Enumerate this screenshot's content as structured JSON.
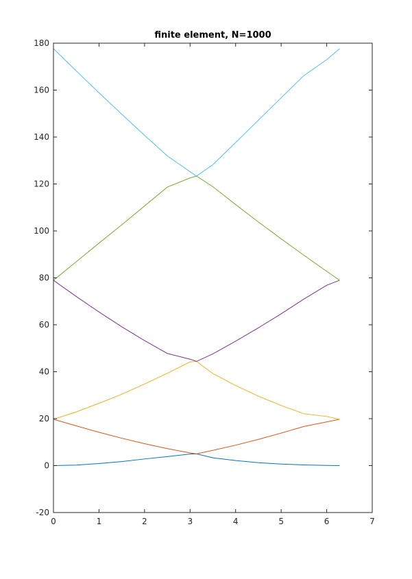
{
  "chart_data": {
    "type": "line",
    "title": "finite element, N=1000",
    "xlabel": "",
    "ylabel": "",
    "xlim": [
      0,
      7
    ],
    "ylim": [
      -20,
      180
    ],
    "xticks": [
      0,
      1,
      2,
      3,
      4,
      5,
      6,
      7
    ],
    "yticks": [
      -20,
      0,
      20,
      40,
      60,
      80,
      100,
      120,
      140,
      160,
      180
    ],
    "grid": false,
    "x_range": [
      0,
      6.283
    ],
    "series": [
      {
        "color": "#0072BD",
        "x": [
          0,
          0.5,
          1,
          1.5,
          2,
          2.5,
          3,
          3.1416,
          3.5,
          4,
          4.5,
          5,
          5.5,
          6,
          6.283
        ],
        "values": [
          0.0,
          0.23,
          0.86,
          1.71,
          2.83,
          3.84,
          4.92,
          5.0,
          3.33,
          2.16,
          1.23,
          0.65,
          0.29,
          0.09,
          0.0
        ]
      },
      {
        "color": "#D95319",
        "x": [
          0,
          0.5,
          1,
          1.5,
          2,
          2.5,
          3,
          3.1416,
          3.5,
          4,
          4.5,
          5,
          5.5,
          6,
          6.283
        ],
        "values": [
          19.74,
          16.93,
          14.2,
          11.66,
          9.33,
          7.24,
          5.39,
          5.0,
          6.49,
          8.7,
          11.17,
          13.85,
          16.67,
          18.6,
          19.74
        ]
      },
      {
        "color": "#EDB120",
        "x": [
          0,
          0.5,
          1,
          1.5,
          2,
          2.5,
          3,
          3.1416,
          3.5,
          4,
          4.5,
          5,
          5.5,
          6,
          6.283
        ],
        "values": [
          19.74,
          22.88,
          26.54,
          30.43,
          34.75,
          39.33,
          44.19,
          44.41,
          39.2,
          34.11,
          29.59,
          25.6,
          22.1,
          20.93,
          19.74
        ]
      },
      {
        "color": "#7E2F8E",
        "x": [
          0,
          0.5,
          1,
          1.5,
          2,
          2.5,
          3,
          3.1416,
          3.5,
          4,
          4.5,
          5,
          5.5,
          6,
          6.283
        ],
        "values": [
          78.96,
          72.07,
          65.46,
          59.13,
          53.28,
          47.78,
          45.34,
          44.41,
          47.6,
          53.01,
          58.7,
          64.68,
          70.97,
          76.84,
          78.96
        ]
      },
      {
        "color": "#77AC30",
        "x": [
          0,
          0.5,
          1,
          1.5,
          2,
          2.5,
          3,
          3.1416,
          3.5,
          4,
          4.5,
          5,
          5.5,
          6,
          6.283
        ],
        "values": [
          78.96,
          86.87,
          94.8,
          102.58,
          110.64,
          118.66,
          122.6,
          123.37,
          118.83,
          111.22,
          103.79,
          96.63,
          89.64,
          82.78,
          78.96
        ]
      },
      {
        "color": "#4DBEEE",
        "x": [
          0,
          0.5,
          1,
          1.5,
          2,
          2.5,
          3,
          3.1416,
          3.5,
          4,
          4.5,
          5,
          5.5,
          6,
          6.283
        ],
        "values": [
          177.66,
          168.18,
          158.83,
          149.7,
          140.72,
          131.97,
          125.2,
          123.37,
          128.2,
          137.66,
          147.2,
          156.74,
          166.22,
          172.96,
          177.66
        ]
      }
    ]
  }
}
